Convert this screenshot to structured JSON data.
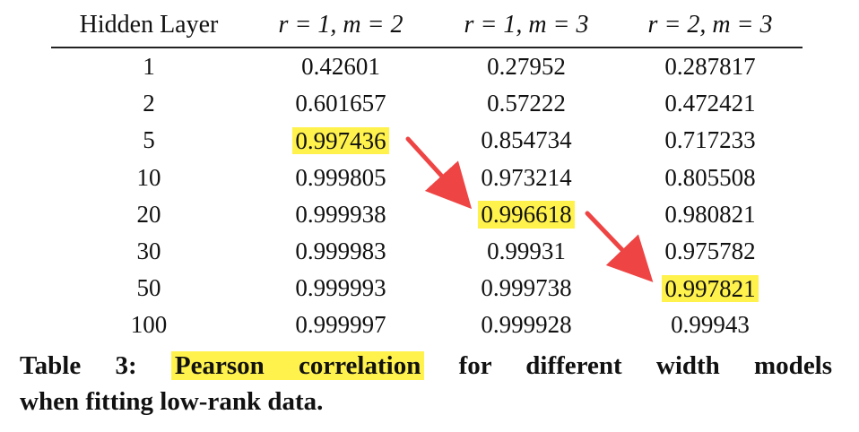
{
  "table": {
    "headers": [
      "Hidden Layer",
      "r = 1, m = 2",
      "r = 1, m = 3",
      "r = 2, m = 3"
    ],
    "rows": [
      [
        "1",
        "0.42601",
        "0.27952",
        "0.287817"
      ],
      [
        "2",
        "0.601657",
        "0.57222",
        "0.472421"
      ],
      [
        "5",
        "0.997436",
        "0.854734",
        "0.717233"
      ],
      [
        "10",
        "0.999805",
        "0.973214",
        "0.805508"
      ],
      [
        "20",
        "0.999938",
        "0.996618",
        "0.980821"
      ],
      [
        "30",
        "0.999983",
        "0.99931",
        "0.975782"
      ],
      [
        "50",
        "0.999993",
        "0.999738",
        "0.997821"
      ],
      [
        "100",
        "0.999997",
        "0.999928",
        "0.99943"
      ]
    ],
    "highlighted_cells": [
      {
        "row": 2,
        "col": 1
      },
      {
        "row": 4,
        "col": 2
      },
      {
        "row": 6,
        "col": 3
      }
    ]
  },
  "caption": {
    "label": "Table 3:",
    "highlighted_phrase": "Pearson correlation",
    "rest_line1": "for different width models",
    "rest_line2": "when fitting low-rank data."
  },
  "colors": {
    "highlight": "#fff24d",
    "arrow": "#ef4444",
    "text": "#111111"
  }
}
